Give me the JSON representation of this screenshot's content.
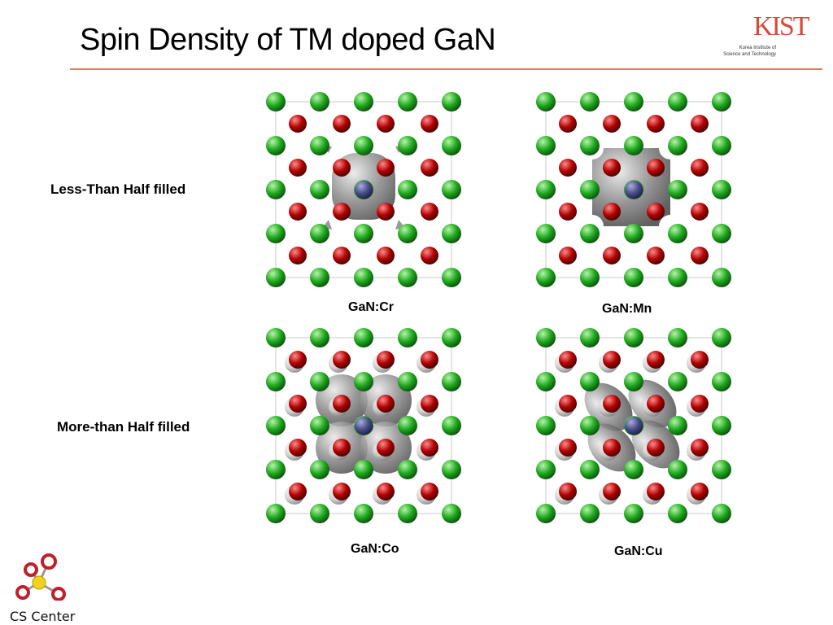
{
  "slide": {
    "title": "Spin Density of TM doped GaN",
    "logo": {
      "mark": "KIST",
      "line1": "Korea Institute of",
      "line2": "Science and Technology"
    },
    "row_labels": [
      "Less-Than Half filled",
      "More-than Half filled"
    ],
    "panels": [
      {
        "caption": "GaN:Cr"
      },
      {
        "caption": "GaN:Mn"
      },
      {
        "caption": "GaN:Co"
      },
      {
        "caption": "GaN:Cu"
      }
    ],
    "footer": {
      "label": "CS Center"
    },
    "colors": {
      "green_atom": "#1fa81f",
      "red_atom": "#b00000",
      "dopant_atom": "#4a4f86",
      "spin_density": "#8a8a8a",
      "rule": "#e07a5f"
    }
  }
}
